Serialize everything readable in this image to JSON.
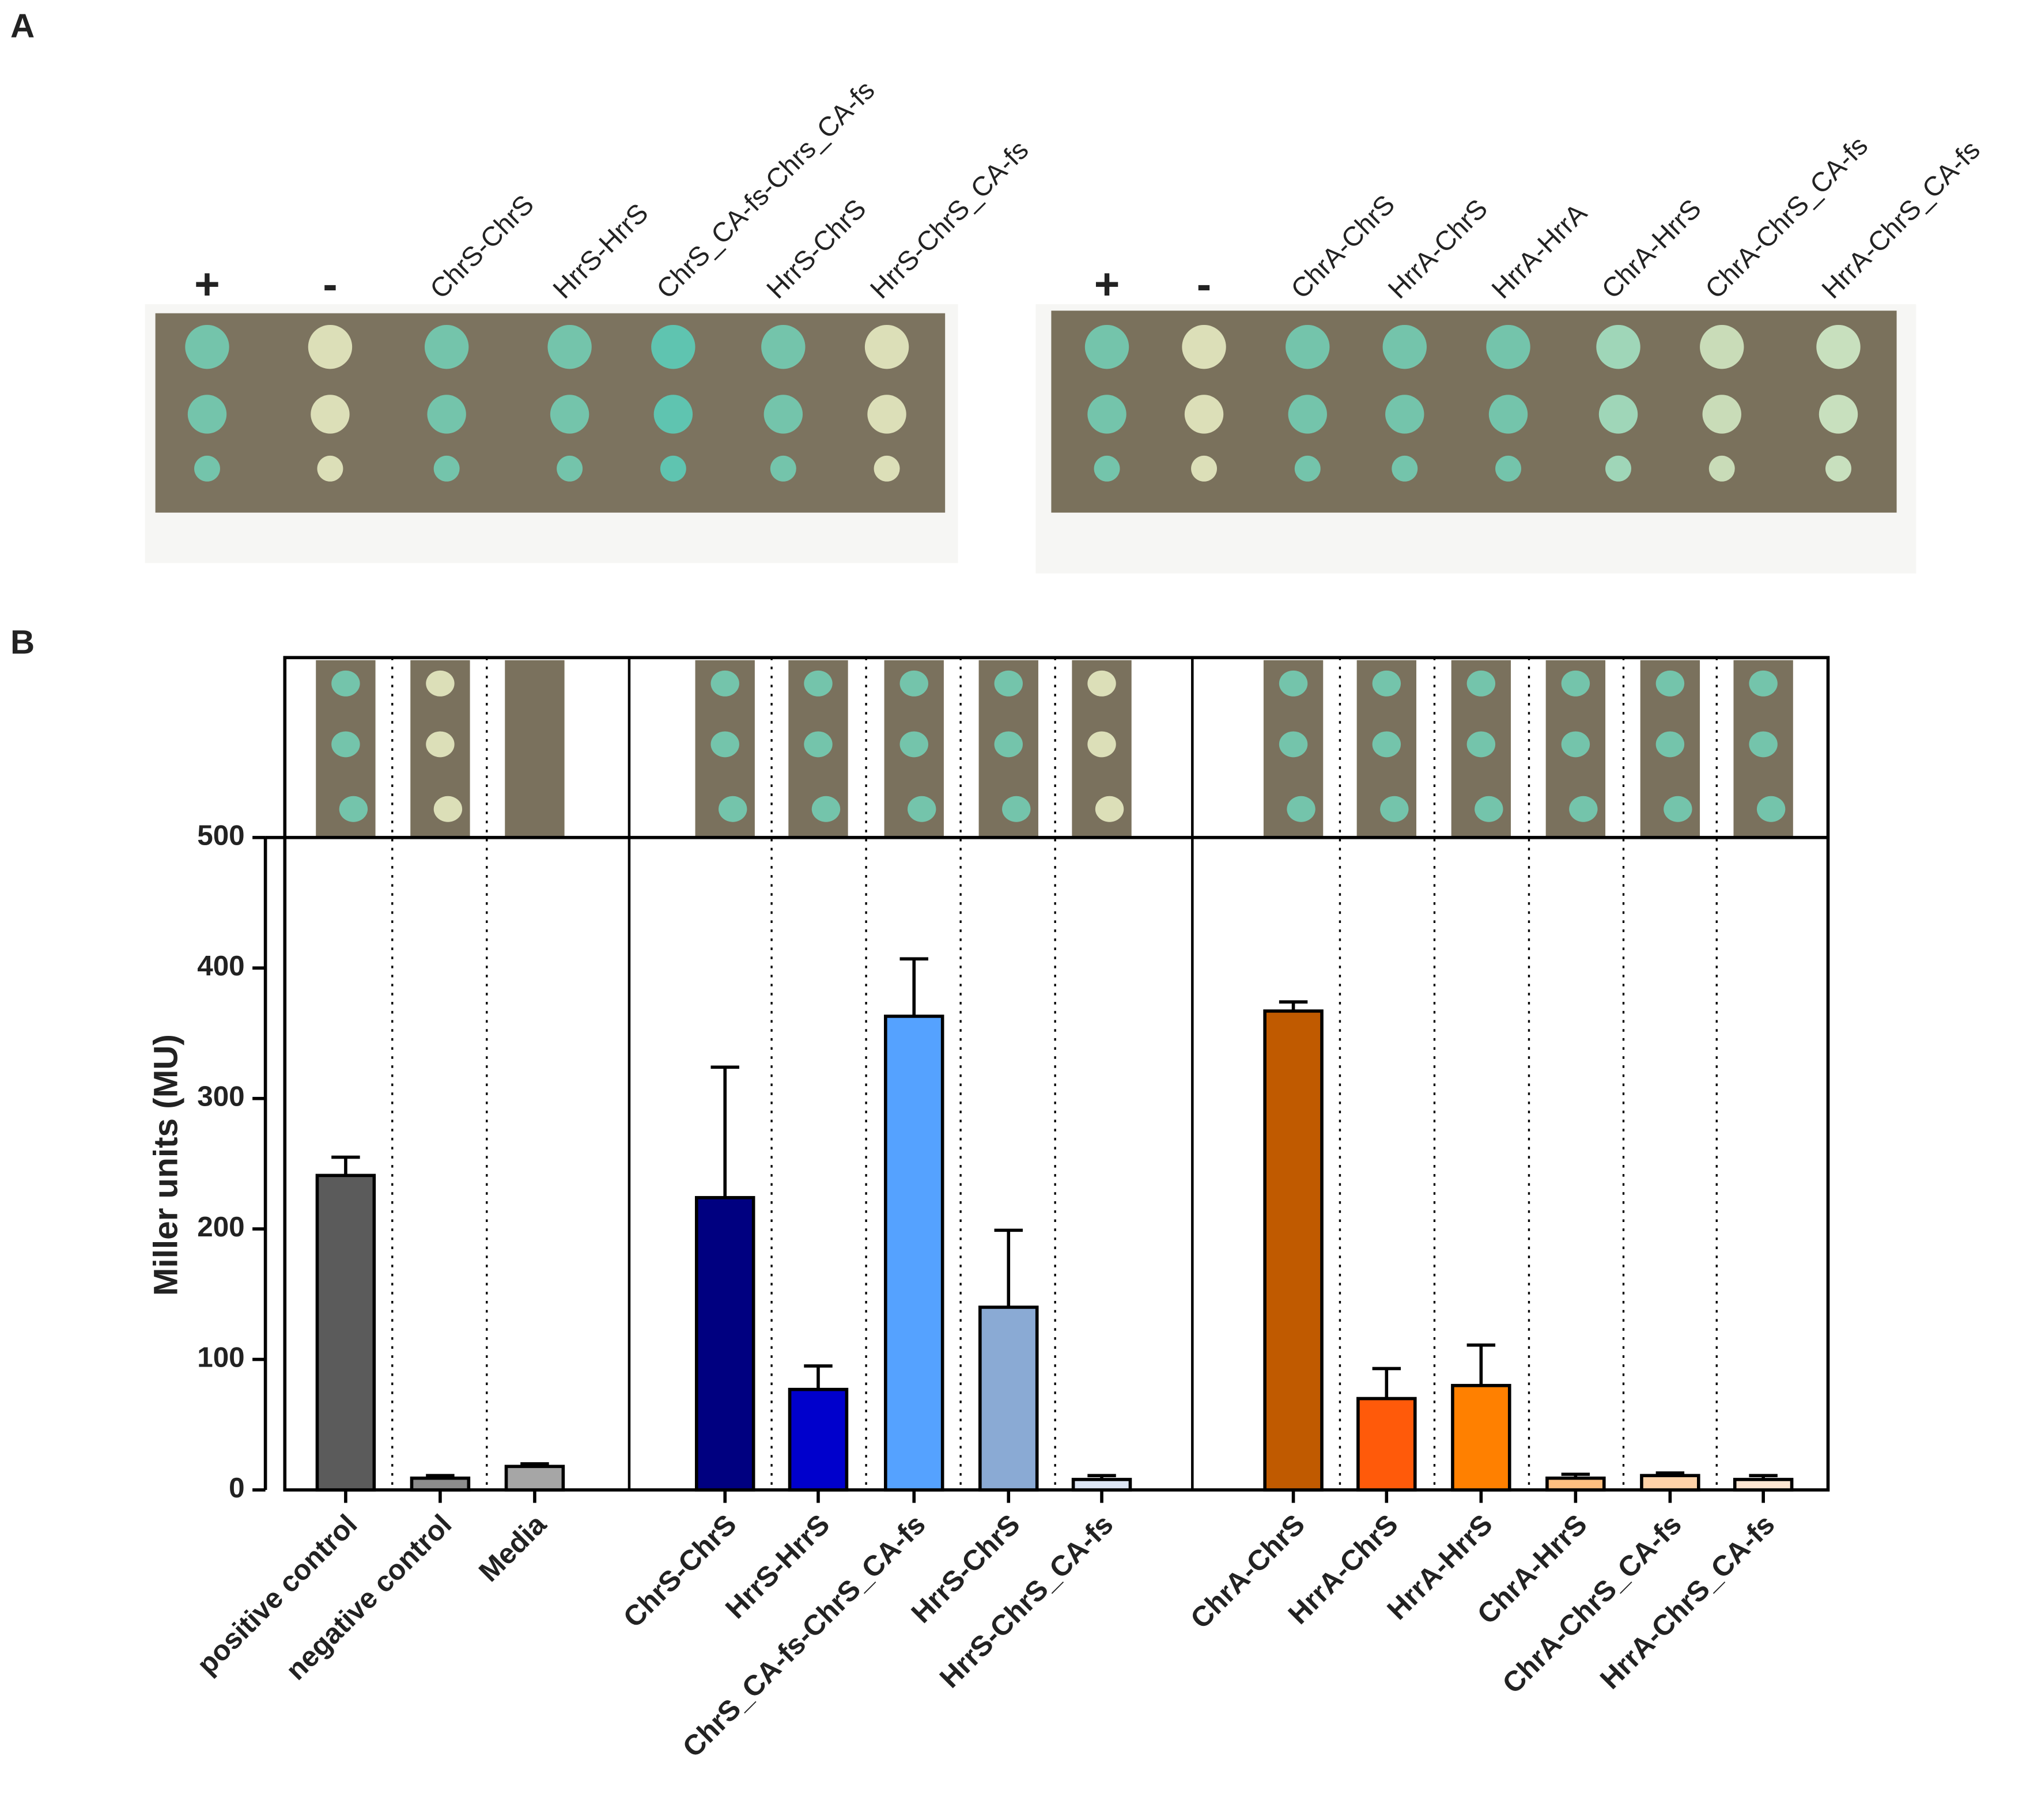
{
  "panel_labels": [
    "A",
    "B"
  ],
  "plate_left_labels": [
    "+",
    "-",
    "ChrS-ChrS",
    "HrrS-HrrS",
    "ChrS_CA-fs-Chrs_CA-fs",
    "HrrS-ChrS",
    "HrrS-ChrS_CA-fs"
  ],
  "plate_right_labels": [
    "+",
    "-",
    "ChrA-ChrS",
    "HrrA-ChrS",
    "HrrA-HrrA",
    "ChrA-HrrS",
    "ChrA-ChrS_CA-fs",
    "HrrA-ChrS_CA-fs"
  ],
  "chart_data": {
    "type": "bar",
    "y_label": "Miller units (MU)",
    "categories": [
      "positive control",
      "negative control",
      "Media",
      "ChrS-ChrS",
      "HrrS-HrrS",
      "ChrS_CA-fs-ChrS_CA-fs",
      "HrrS-ChrS",
      "HrrS-ChrS_CA-fs",
      "ChrA-ChrS",
      "HrrA-ChrS",
      "HrrA-HrrS",
      "ChrA-HrrS",
      "ChrA-ChrS_CA-fs",
      "HrrA-ChrS_CA-fs"
    ],
    "values": [
      241,
      9,
      18,
      224,
      77,
      363,
      140,
      8,
      367,
      70,
      80,
      9,
      11,
      8
    ],
    "errors": [
      14,
      2,
      2,
      100,
      18,
      44,
      59,
      3,
      7,
      23,
      31,
      3,
      2,
      3
    ],
    "colors": [
      "#5b5b5b",
      "#8c8c8c",
      "#a6a6a6",
      "#000080",
      "#0000cc",
      "#55a2ff",
      "#8aaad4",
      "#dde6f5",
      "#c05a00",
      "#ff5a0a",
      "#ff8000",
      "#ffbf80",
      "#ffd2a8",
      "#ffe6d2"
    ],
    "ylim": [
      0,
      500
    ],
    "yticks": [
      0,
      100,
      200,
      300,
      400,
      500
    ]
  }
}
